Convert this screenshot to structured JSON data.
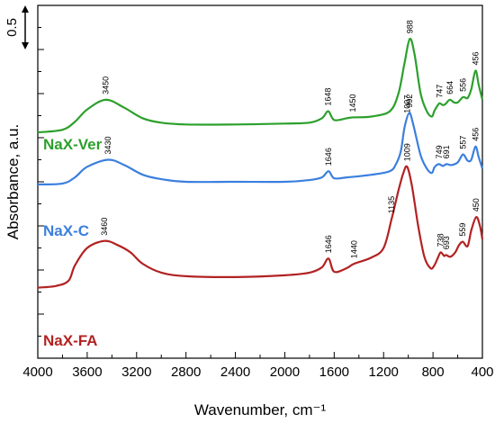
{
  "chart_data": {
    "type": "line",
    "xlabel": "Wavenumber, cm⁻¹",
    "ylabel": "Absorbance, a.u.",
    "xlim": [
      4000,
      400
    ],
    "x_reversed": true,
    "xticks": [
      4000,
      3600,
      3200,
      2800,
      2400,
      2000,
      1600,
      1200,
      800,
      400
    ],
    "xtick_labels": [
      "4000",
      "3600",
      "3200",
      "2800",
      "2400",
      "2000",
      "1600",
      "1200",
      "800",
      "400"
    ],
    "ylim": [
      0,
      4.0
    ],
    "y_tick_labels_shown": false,
    "scale_bar": {
      "label": "0.5",
      "length": 0.5,
      "top": 4.0
    },
    "grid": false,
    "series": [
      {
        "name": "NaX-Ver",
        "color": "#2ca02c",
        "points": [
          [
            4000,
            2.56
          ],
          [
            3800,
            2.59
          ],
          [
            3700,
            2.68
          ],
          [
            3600,
            2.82
          ],
          [
            3450,
            2.93
          ],
          [
            3300,
            2.84
          ],
          [
            3150,
            2.72
          ],
          [
            3000,
            2.67
          ],
          [
            2800,
            2.65
          ],
          [
            2400,
            2.65
          ],
          [
            2000,
            2.66
          ],
          [
            1800,
            2.67
          ],
          [
            1700,
            2.72
          ],
          [
            1648,
            2.8
          ],
          [
            1600,
            2.7
          ],
          [
            1500,
            2.72
          ],
          [
            1450,
            2.73
          ],
          [
            1300,
            2.74
          ],
          [
            1150,
            2.8
          ],
          [
            1080,
            3.0
          ],
          [
            1030,
            3.35
          ],
          [
            988,
            3.62
          ],
          [
            950,
            3.45
          ],
          [
            900,
            3.0
          ],
          [
            850,
            2.8
          ],
          [
            810,
            2.74
          ],
          [
            790,
            2.8
          ],
          [
            770,
            2.85
          ],
          [
            747,
            2.89
          ],
          [
            720,
            2.87
          ],
          [
            700,
            2.88
          ],
          [
            664,
            2.93
          ],
          [
            630,
            2.9
          ],
          [
            600,
            2.9
          ],
          [
            556,
            2.96
          ],
          [
            520,
            2.95
          ],
          [
            490,
            3.05
          ],
          [
            456,
            3.26
          ],
          [
            430,
            3.1
          ],
          [
            400,
            2.93
          ]
        ],
        "peak_labels": [
          3450,
          1648,
          1450,
          988,
          747,
          664,
          556,
          456
        ]
      },
      {
        "name": "NaX-C",
        "color": "#3b7fde",
        "points": [
          [
            4000,
            1.97
          ],
          [
            3800,
            1.98
          ],
          [
            3700,
            2.05
          ],
          [
            3600,
            2.17
          ],
          [
            3430,
            2.25
          ],
          [
            3300,
            2.19
          ],
          [
            3150,
            2.08
          ],
          [
            3000,
            2.03
          ],
          [
            2800,
            2.0
          ],
          [
            2400,
            2.0
          ],
          [
            2000,
            2.0
          ],
          [
            1800,
            2.02
          ],
          [
            1700,
            2.05
          ],
          [
            1646,
            2.12
          ],
          [
            1600,
            2.04
          ],
          [
            1500,
            2.05
          ],
          [
            1300,
            2.08
          ],
          [
            1150,
            2.12
          ],
          [
            1100,
            2.2
          ],
          [
            1060,
            2.35
          ],
          [
            1030,
            2.62
          ],
          [
            992,
            2.78
          ],
          [
            960,
            2.65
          ],
          [
            900,
            2.3
          ],
          [
            850,
            2.15
          ],
          [
            810,
            2.1
          ],
          [
            790,
            2.16
          ],
          [
            770,
            2.19
          ],
          [
            749,
            2.2
          ],
          [
            720,
            2.18
          ],
          [
            691,
            2.2
          ],
          [
            650,
            2.19
          ],
          [
            600,
            2.22
          ],
          [
            557,
            2.31
          ],
          [
            520,
            2.24
          ],
          [
            490,
            2.25
          ],
          [
            456,
            2.4
          ],
          [
            430,
            2.28
          ],
          [
            400,
            2.15
          ]
        ],
        "peak_labels": [
          3430,
          1646,
          1007,
          992,
          749,
          691,
          557,
          456
        ]
      },
      {
        "name": "NaX-FA",
        "color": "#b22222",
        "points": [
          [
            4000,
            0.8
          ],
          [
            3850,
            0.82
          ],
          [
            3750,
            0.88
          ],
          [
            3700,
            1.05
          ],
          [
            3600,
            1.25
          ],
          [
            3460,
            1.33
          ],
          [
            3350,
            1.28
          ],
          [
            3250,
            1.2
          ],
          [
            3150,
            1.07
          ],
          [
            3000,
            0.97
          ],
          [
            2800,
            0.93
          ],
          [
            2400,
            0.92
          ],
          [
            2000,
            0.94
          ],
          [
            1800,
            0.97
          ],
          [
            1700,
            1.03
          ],
          [
            1646,
            1.13
          ],
          [
            1600,
            0.98
          ],
          [
            1500,
            1.02
          ],
          [
            1440,
            1.07
          ],
          [
            1300,
            1.14
          ],
          [
            1200,
            1.25
          ],
          [
            1135,
            1.58
          ],
          [
            1080,
            1.9
          ],
          [
            1040,
            2.1
          ],
          [
            1009,
            2.17
          ],
          [
            970,
            1.95
          ],
          [
            920,
            1.5
          ],
          [
            870,
            1.15
          ],
          [
            820,
            1.02
          ],
          [
            790,
            1.05
          ],
          [
            760,
            1.14
          ],
          [
            738,
            1.2
          ],
          [
            710,
            1.16
          ],
          [
            693,
            1.17
          ],
          [
            660,
            1.15
          ],
          [
            620,
            1.2
          ],
          [
            590,
            1.28
          ],
          [
            559,
            1.32
          ],
          [
            520,
            1.27
          ],
          [
            490,
            1.45
          ],
          [
            450,
            1.6
          ],
          [
            420,
            1.5
          ],
          [
            400,
            1.35
          ]
        ],
        "peak_labels": [
          3460,
          1646,
          1440,
          1135,
          1009,
          738,
          693,
          559,
          450
        ]
      }
    ],
    "peak_label_text": {
      "NaX-Ver": [
        "3450",
        "1648",
        "1450",
        "988",
        "747",
        "664",
        "556",
        "456"
      ],
      "NaX-C": [
        "3430",
        "1646",
        "1007",
        "992",
        "749",
        "691",
        "557",
        "456"
      ],
      "NaX-FA": [
        "3460",
        "1646",
        "1440",
        "1135",
        "1009",
        "738",
        "693",
        "559",
        "450"
      ]
    }
  }
}
